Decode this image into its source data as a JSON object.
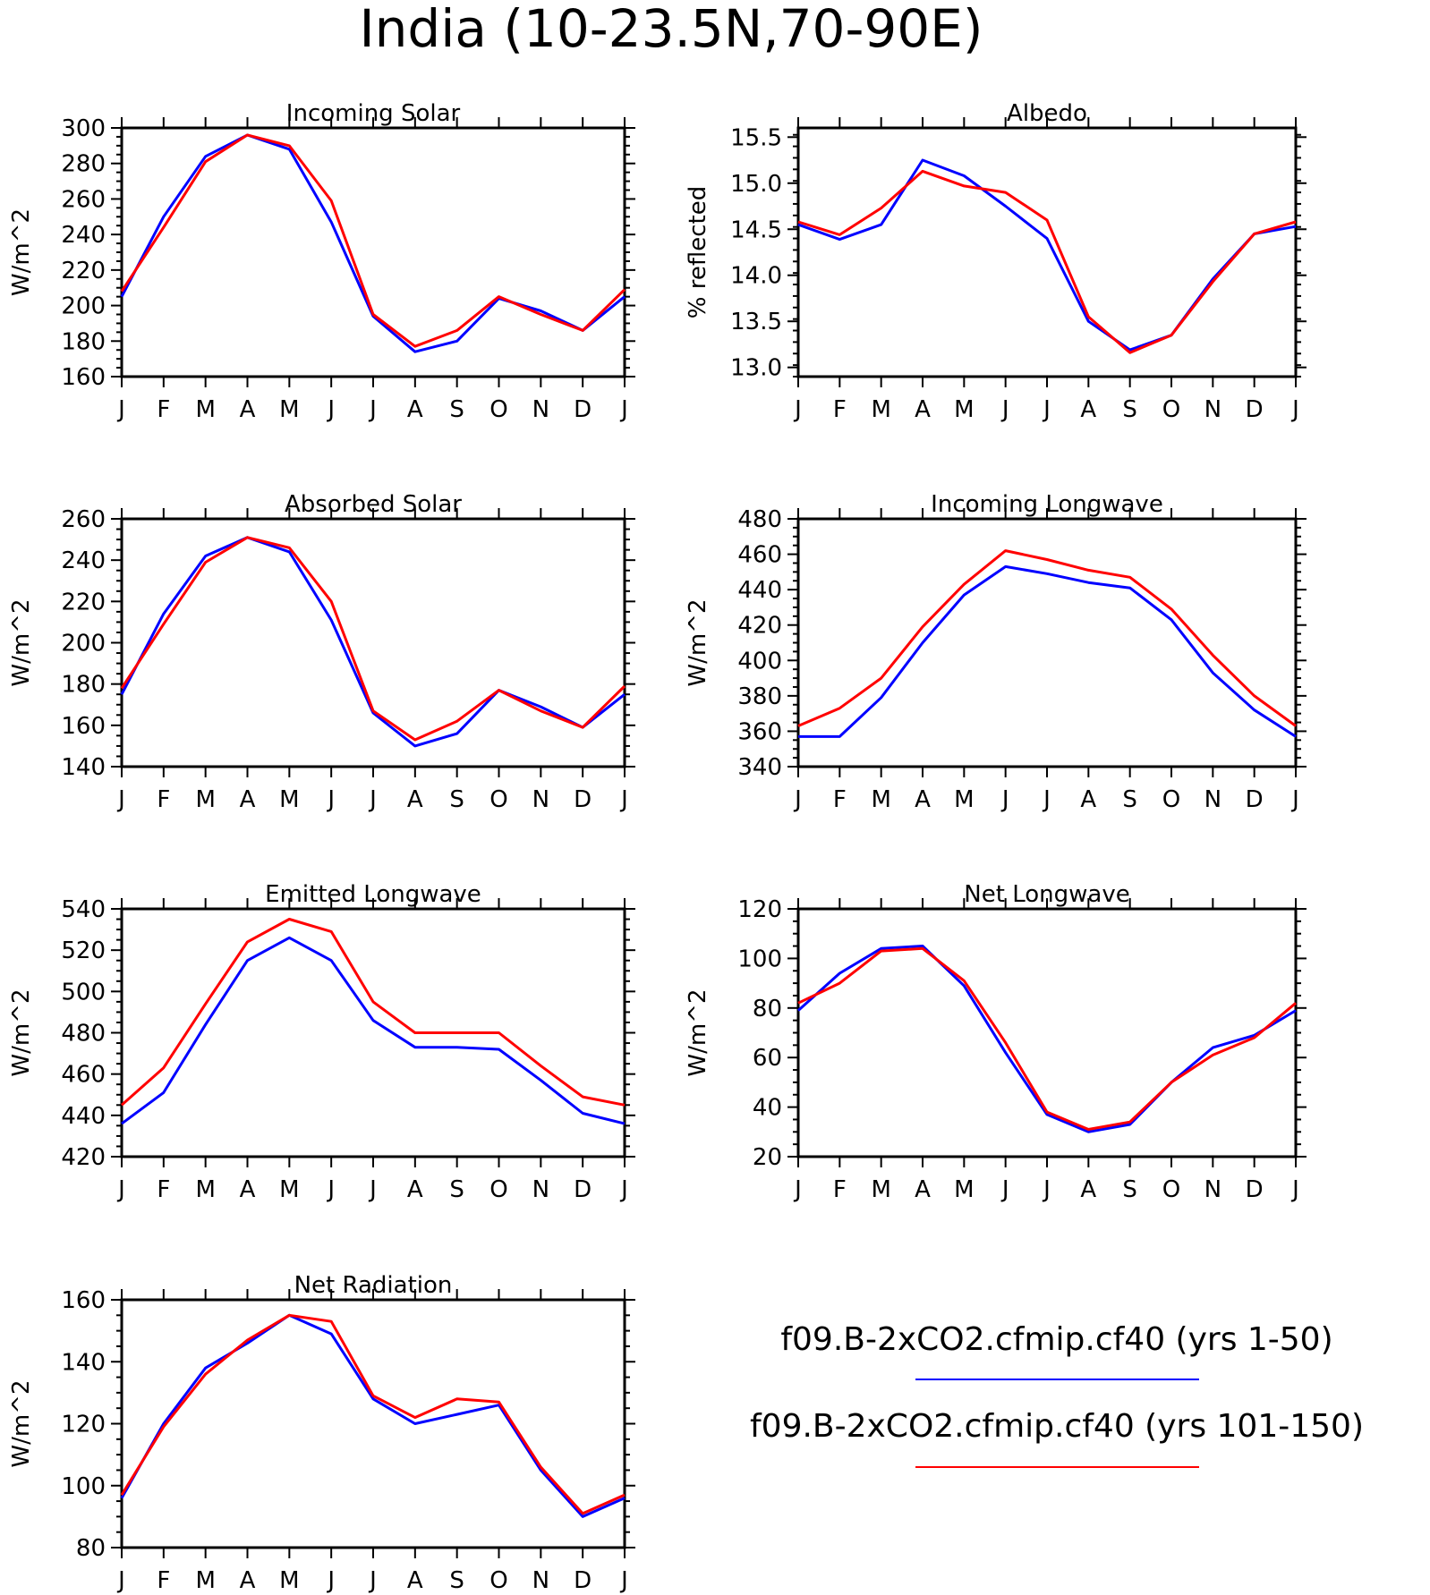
{
  "figure": {
    "title": "India (10-23.5N,70-90E)"
  },
  "legend": {
    "placement": "bottom-right",
    "entries": [
      {
        "label": "f09.B-2xCO2.cfmip.cf40 (yrs 1-50)",
        "color": "#0000ff"
      },
      {
        "label": "f09.B-2xCO2.cfmip.cf40 (yrs 101-150)",
        "color": "#ff0000"
      }
    ]
  },
  "chart_data": [
    {
      "type": "line",
      "title": "Incoming Solar",
      "ylabel": "W/m^2",
      "categories": [
        "J",
        "F",
        "M",
        "A",
        "M",
        "J",
        "J",
        "A",
        "S",
        "O",
        "N",
        "D",
        "J"
      ],
      "ylim": [
        160,
        300
      ],
      "yticks": [
        160,
        180,
        200,
        220,
        240,
        260,
        280,
        300
      ],
      "series": [
        {
          "color": "#0000ff",
          "values": [
            205,
            250,
            284,
            296,
            288,
            247,
            194,
            174,
            180,
            204,
            197,
            186,
            205
          ]
        },
        {
          "color": "#ff0000",
          "values": [
            208,
            244,
            281,
            296,
            290,
            259,
            195,
            177,
            186,
            205,
            195,
            186,
            209
          ]
        }
      ]
    },
    {
      "type": "line",
      "title": "Albedo",
      "ylabel": "% reflected",
      "categories": [
        "J",
        "F",
        "M",
        "A",
        "M",
        "J",
        "J",
        "A",
        "S",
        "O",
        "N",
        "D",
        "J"
      ],
      "ylim": [
        12.9,
        15.6
      ],
      "yticks": [
        13.0,
        13.5,
        14.0,
        14.5,
        15.0,
        15.5
      ],
      "ytick_labels": [
        "13.0",
        "13.5",
        "14.0",
        "14.5",
        "15.0",
        "15.5"
      ],
      "series": [
        {
          "color": "#0000ff",
          "values": [
            14.55,
            14.39,
            14.55,
            15.25,
            15.08,
            14.75,
            14.4,
            13.5,
            13.19,
            13.35,
            13.96,
            14.45,
            14.53
          ]
        },
        {
          "color": "#ff0000",
          "values": [
            14.58,
            14.44,
            14.73,
            15.13,
            14.97,
            14.9,
            14.6,
            13.55,
            13.16,
            13.35,
            13.93,
            14.45,
            14.58
          ]
        }
      ]
    },
    {
      "type": "line",
      "title": "Absorbed Solar",
      "ylabel": "W/m^2",
      "categories": [
        "J",
        "F",
        "M",
        "A",
        "M",
        "J",
        "J",
        "A",
        "S",
        "O",
        "N",
        "D",
        "J"
      ],
      "ylim": [
        140,
        260
      ],
      "yticks": [
        140,
        160,
        180,
        200,
        220,
        240,
        260
      ],
      "series": [
        {
          "color": "#0000ff",
          "values": [
            175,
            214,
            242,
            251,
            244,
            211,
            166,
            150,
            156,
            177,
            169,
            159,
            175
          ]
        },
        {
          "color": "#ff0000",
          "values": [
            178,
            209,
            239,
            251,
            246,
            220,
            167,
            153,
            162,
            177,
            167,
            159,
            179
          ]
        }
      ]
    },
    {
      "type": "line",
      "title": "Incoming Longwave",
      "ylabel": "W/m^2",
      "categories": [
        "J",
        "F",
        "M",
        "A",
        "M",
        "J",
        "J",
        "A",
        "S",
        "O",
        "N",
        "D",
        "J"
      ],
      "ylim": [
        340,
        480
      ],
      "yticks": [
        340,
        360,
        380,
        400,
        420,
        440,
        460,
        480
      ],
      "series": [
        {
          "color": "#0000ff",
          "values": [
            357,
            357,
            379,
            410,
            437,
            453,
            449,
            444,
            441,
            423,
            393,
            372,
            357
          ]
        },
        {
          "color": "#ff0000",
          "values": [
            363,
            373,
            390,
            419,
            443,
            462,
            457,
            451,
            447,
            429,
            403,
            380,
            363
          ]
        }
      ]
    },
    {
      "type": "line",
      "title": "Emitted Longwave",
      "ylabel": "W/m^2",
      "categories": [
        "J",
        "F",
        "M",
        "A",
        "M",
        "J",
        "J",
        "A",
        "S",
        "O",
        "N",
        "D",
        "J"
      ],
      "ylim": [
        420,
        540
      ],
      "yticks": [
        420,
        440,
        460,
        480,
        500,
        520,
        540
      ],
      "series": [
        {
          "color": "#0000ff",
          "values": [
            436,
            451,
            484,
            515,
            526,
            515,
            486,
            473,
            473,
            472,
            457,
            441,
            436
          ]
        },
        {
          "color": "#ff0000",
          "values": [
            445,
            463,
            494,
            524,
            535,
            529,
            495,
            480,
            480,
            480,
            464,
            449,
            445
          ]
        }
      ]
    },
    {
      "type": "line",
      "title": "Net Longwave",
      "ylabel": "W/m^2",
      "categories": [
        "J",
        "F",
        "M",
        "A",
        "M",
        "J",
        "J",
        "A",
        "S",
        "O",
        "N",
        "D",
        "J"
      ],
      "ylim": [
        20,
        120
      ],
      "yticks": [
        20,
        40,
        60,
        80,
        100,
        120
      ],
      "series": [
        {
          "color": "#0000ff",
          "values": [
            79,
            94,
            104,
            105,
            89,
            62,
            37,
            30,
            33,
            50,
            64,
            69,
            79
          ]
        },
        {
          "color": "#ff0000",
          "values": [
            82,
            90,
            103,
            104,
            91,
            66,
            38,
            31,
            34,
            50,
            61,
            68,
            82
          ]
        }
      ]
    },
    {
      "type": "line",
      "title": "Net Radiation",
      "ylabel": "W/m^2",
      "categories": [
        "J",
        "F",
        "M",
        "A",
        "M",
        "J",
        "J",
        "A",
        "S",
        "O",
        "N",
        "D",
        "J"
      ],
      "ylim": [
        80,
        160
      ],
      "yticks": [
        80,
        100,
        120,
        140,
        160
      ],
      "series": [
        {
          "color": "#0000ff",
          "values": [
            96,
            120,
            138,
            146,
            155,
            149,
            128,
            120,
            123,
            126,
            105,
            90,
            96
          ]
        },
        {
          "color": "#ff0000",
          "values": [
            97,
            119,
            136,
            147,
            155,
            153,
            129,
            122,
            128,
            127,
            106,
            91,
            97
          ]
        }
      ]
    }
  ]
}
